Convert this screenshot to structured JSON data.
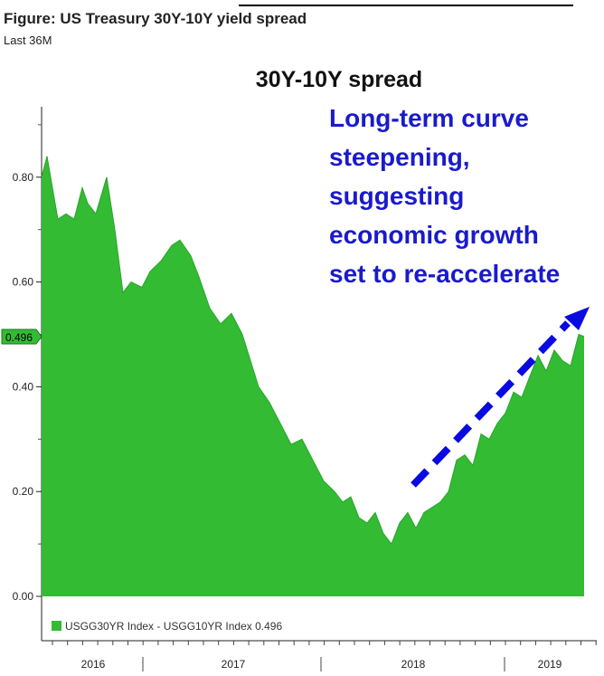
{
  "figure": {
    "title": "Figure: US Treasury 30Y-10Y yield spread",
    "subtitle": "Last 36M"
  },
  "chart_data": {
    "type": "area",
    "title": "30Y-10Y spread",
    "annotation": [
      "Long-term curve",
      "steepening,",
      "suggesting",
      "economic growth",
      "set to re-accelerate"
    ],
    "annotation_color": "#1a1acc",
    "series_color": "#33bb33",
    "arrow_color": "#0a0ae0",
    "ylim": [
      0,
      0.9
    ],
    "y_ticks": [
      0.0,
      0.2,
      0.4,
      0.6,
      0.8
    ],
    "y_tick_labels": [
      "0.00",
      "0.20",
      "0.40",
      "0.60",
      "0.80"
    ],
    "x_labels": [
      "2016",
      "2017",
      "2018",
      "2019"
    ],
    "grid": false,
    "legend": {
      "position": "bottom-left",
      "text": "USGG30YR Index - USGG10YR Index 0.496"
    },
    "last_value_label": "0.496",
    "series": [
      {
        "values": [
          [
            0.0,
            0.8
          ],
          [
            0.01,
            0.84
          ],
          [
            0.02,
            0.78
          ],
          [
            0.03,
            0.72
          ],
          [
            0.045,
            0.73
          ],
          [
            0.06,
            0.72
          ],
          [
            0.075,
            0.78
          ],
          [
            0.085,
            0.75
          ],
          [
            0.1,
            0.73
          ],
          [
            0.12,
            0.8
          ],
          [
            0.135,
            0.7
          ],
          [
            0.15,
            0.58
          ],
          [
            0.165,
            0.6
          ],
          [
            0.185,
            0.59
          ],
          [
            0.2,
            0.62
          ],
          [
            0.22,
            0.64
          ],
          [
            0.24,
            0.67
          ],
          [
            0.255,
            0.68
          ],
          [
            0.275,
            0.65
          ],
          [
            0.29,
            0.61
          ],
          [
            0.31,
            0.55
          ],
          [
            0.33,
            0.52
          ],
          [
            0.35,
            0.54
          ],
          [
            0.37,
            0.5
          ],
          [
            0.385,
            0.45
          ],
          [
            0.4,
            0.4
          ],
          [
            0.42,
            0.37
          ],
          [
            0.44,
            0.33
          ],
          [
            0.46,
            0.29
          ],
          [
            0.48,
            0.3
          ],
          [
            0.5,
            0.26
          ],
          [
            0.52,
            0.22
          ],
          [
            0.54,
            0.2
          ],
          [
            0.555,
            0.18
          ],
          [
            0.57,
            0.19
          ],
          [
            0.585,
            0.15
          ],
          [
            0.6,
            0.14
          ],
          [
            0.615,
            0.16
          ],
          [
            0.63,
            0.12
          ],
          [
            0.645,
            0.1
          ],
          [
            0.66,
            0.14
          ],
          [
            0.675,
            0.16
          ],
          [
            0.69,
            0.13
          ],
          [
            0.705,
            0.16
          ],
          [
            0.72,
            0.17
          ],
          [
            0.735,
            0.18
          ],
          [
            0.75,
            0.2
          ],
          [
            0.765,
            0.26
          ],
          [
            0.78,
            0.27
          ],
          [
            0.795,
            0.25
          ],
          [
            0.81,
            0.31
          ],
          [
            0.825,
            0.3
          ],
          [
            0.84,
            0.33
          ],
          [
            0.855,
            0.35
          ],
          [
            0.87,
            0.39
          ],
          [
            0.885,
            0.38
          ],
          [
            0.9,
            0.42
          ],
          [
            0.915,
            0.46
          ],
          [
            0.93,
            0.43
          ],
          [
            0.945,
            0.47
          ],
          [
            0.96,
            0.45
          ],
          [
            0.975,
            0.44
          ],
          [
            0.99,
            0.5
          ],
          [
            1.0,
            0.496
          ]
        ]
      }
    ]
  }
}
